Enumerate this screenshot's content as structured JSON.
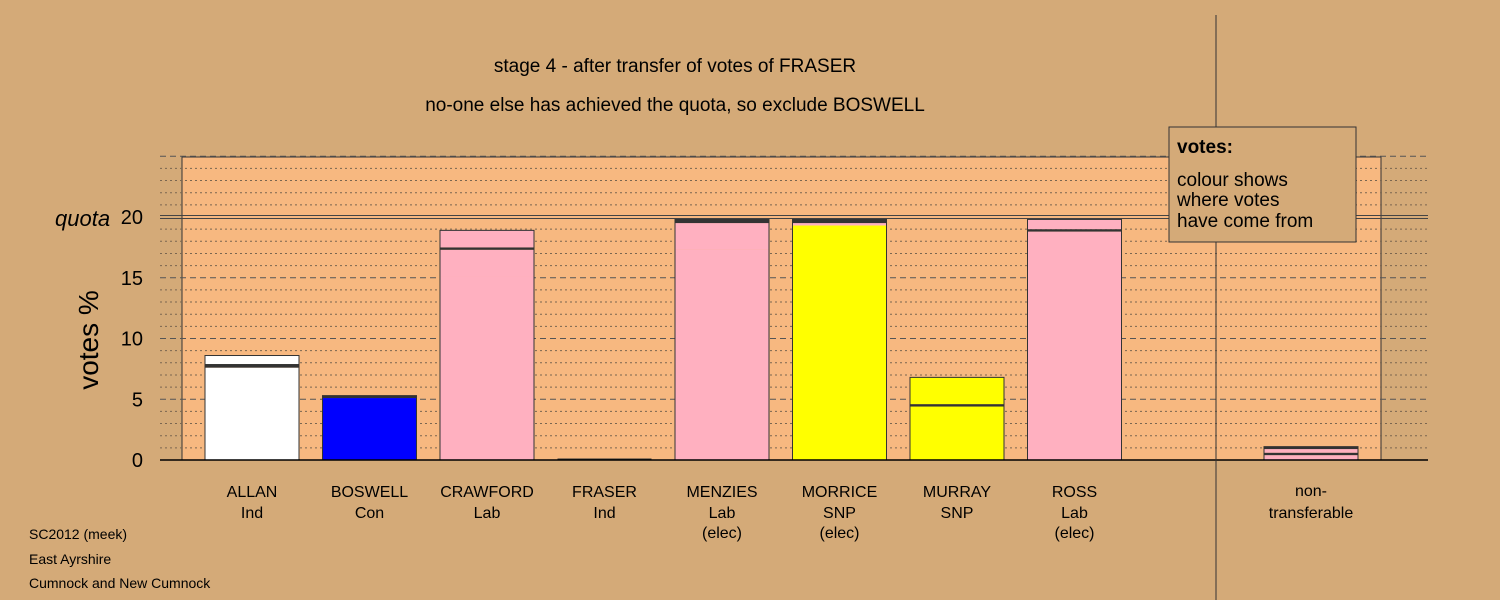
{
  "titles": {
    "line1": "stage 4 - after transfer of votes of FRASER",
    "line2": "no-one else has achieved the quota, so exclude BOSWELL"
  },
  "legend": {
    "heading": "votes:",
    "lines": [
      "colour shows",
      "where votes",
      "have come from"
    ]
  },
  "footer": [
    "SC2012 (meek)",
    "East Ayrshire",
    "Cumnock and New Cumnock"
  ],
  "chart_data": {
    "type": "bar",
    "stacked": true,
    "ylabel": "votes %",
    "ylim": [
      0,
      25
    ],
    "yticks": [
      0,
      5,
      10,
      15,
      20
    ],
    "quota": 20,
    "quota_label": "quota",
    "grid": true,
    "colors": {
      "Ind": "#ffffff",
      "Con": "#0000ff",
      "Lab": "#ffb0c0",
      "SNP": "#ffff00",
      "background": "#d4aa78",
      "plot_area": "#f7b880"
    },
    "candidates": [
      {
        "name": "ALLAN",
        "party": "Ind",
        "note": "",
        "total": 8.6,
        "segments": [
          {
            "color": "#ffffff",
            "value": 7.6
          },
          {
            "color": "#333333",
            "value": 0.3
          },
          {
            "color": "#ffffff",
            "value": 0.7
          }
        ]
      },
      {
        "name": "BOSWELL",
        "party": "Con",
        "note": "",
        "total": 5.3,
        "segments": [
          {
            "color": "#0000ff",
            "value": 5.1
          },
          {
            "color": "#333333",
            "value": 0.2
          }
        ]
      },
      {
        "name": "CRAWFORD",
        "party": "Lab",
        "note": "",
        "total": 18.9,
        "segments": [
          {
            "color": "#ffb0c0",
            "value": 15.1
          },
          {
            "color": "#ffb0c0",
            "value": 2.2
          },
          {
            "color": "#333333",
            "value": 0.2
          },
          {
            "color": "#ffb0c0",
            "value": 1.4
          }
        ]
      },
      {
        "name": "FRASER",
        "party": "Ind",
        "note": "",
        "total": 0,
        "segments": []
      },
      {
        "name": "MENZIES",
        "party": "Lab",
        "note": "(elec)",
        "total": 19.8,
        "segments": [
          {
            "color": "#ffb0c0",
            "value": 17.3
          },
          {
            "color": "#ffb0c0",
            "value": 2.2
          },
          {
            "color": "#333333",
            "value": 0.3
          }
        ]
      },
      {
        "name": "MORRICE",
        "party": "SNP",
        "note": "(elec)",
        "total": 19.8,
        "segments": [
          {
            "color": "#ffff00",
            "value": 19.3
          },
          {
            "color": "#ffb0c0",
            "value": 0.2
          },
          {
            "color": "#333333",
            "value": 0.3
          }
        ]
      },
      {
        "name": "MURRAY",
        "party": "SNP",
        "note": "",
        "total": 6.8,
        "segments": [
          {
            "color": "#ffff00",
            "value": 4.4
          },
          {
            "color": "#333333",
            "value": 0.2
          },
          {
            "color": "#ffff00",
            "value": 2.2
          }
        ]
      },
      {
        "name": "ROSS",
        "party": "Lab",
        "note": "(elec)",
        "total": 19.8,
        "segments": [
          {
            "color": "#ffb0c0",
            "value": 18.8
          },
          {
            "color": "#333333",
            "value": 0.2
          },
          {
            "color": "#ffb0c0",
            "value": 0.8
          }
        ]
      }
    ],
    "non_transferable": {
      "label_lines": [
        "non-",
        "transferable"
      ],
      "total": 1.1,
      "segments": [
        {
          "color": "#ffb0c0",
          "value": 0.4
        },
        {
          "color": "#333333",
          "value": 0.2
        },
        {
          "color": "#ffb0c0",
          "value": 0.3
        },
        {
          "color": "#333333",
          "value": 0.2
        }
      ]
    }
  }
}
